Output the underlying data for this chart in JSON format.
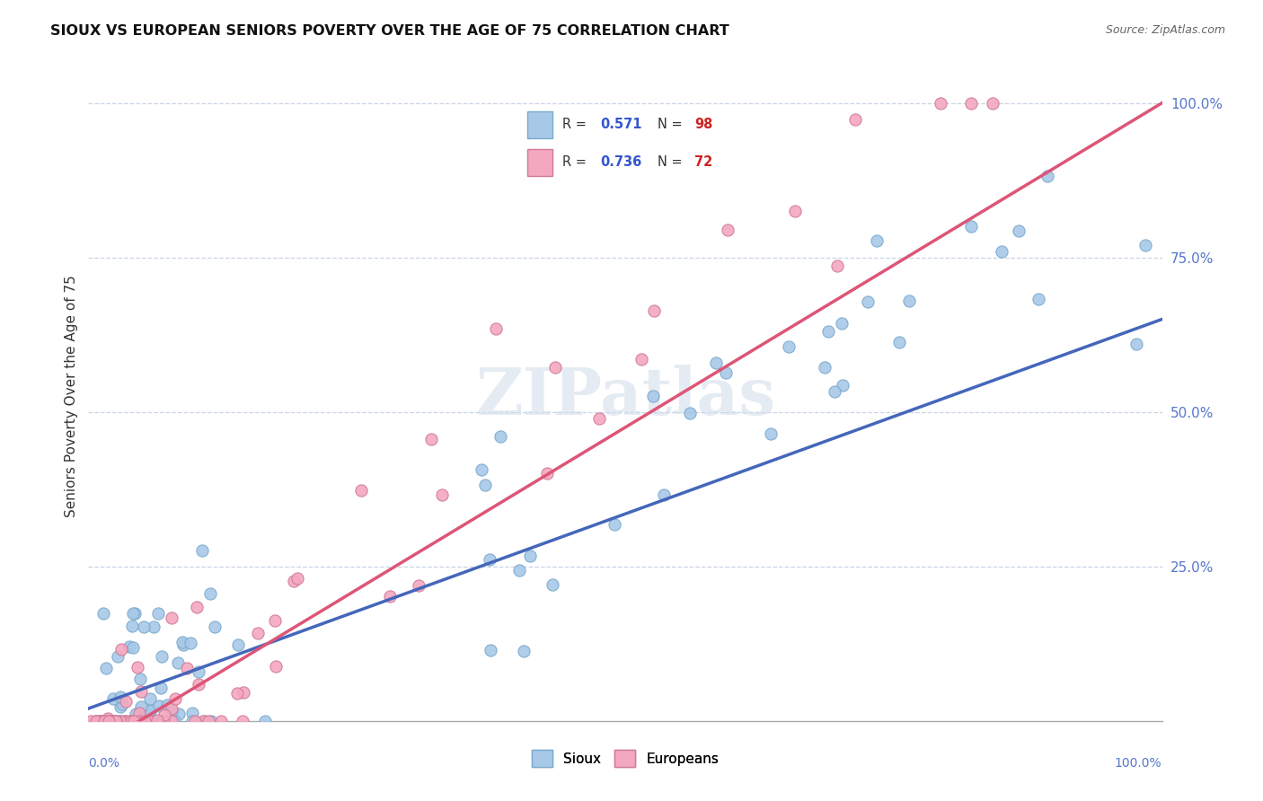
{
  "title": "SIOUX VS EUROPEAN SENIORS POVERTY OVER THE AGE OF 75 CORRELATION CHART",
  "source": "Source: ZipAtlas.com",
  "ylabel": "Seniors Poverty Over the Age of 75",
  "sioux_color": "#a8c8e8",
  "sioux_edge_color": "#7aaacc",
  "europeans_color": "#f4a8c0",
  "europeans_edge_color": "#d07898",
  "sioux_line_color": "#4466bb",
  "europeans_line_color": "#dd5577",
  "background_color": "#ffffff",
  "grid_color": "#c8d4e4",
  "watermark_color": "#d0dcea",
  "right_tick_color": "#5577cc",
  "legend_R_color": "#3355cc",
  "legend_N_color": "#cc2222",
  "sioux_R": 0.571,
  "sioux_N": 98,
  "europeans_R": 0.736,
  "europeans_N": 72,
  "sioux_line_intercept": 0.02,
  "sioux_line_slope": 0.63,
  "europeans_line_intercept": -0.05,
  "europeans_line_slope": 1.05
}
